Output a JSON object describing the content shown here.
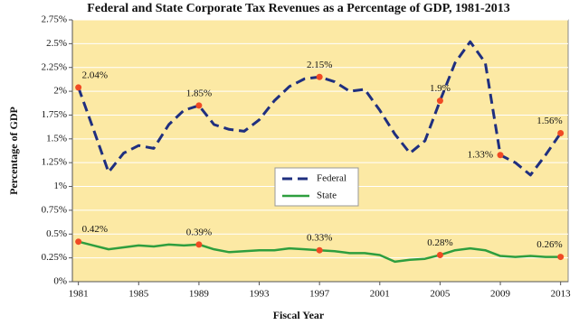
{
  "chart_data": {
    "type": "line",
    "title": "Federal and State Corporate Tax Revenues as a Percentage of GDP, 1981-2013",
    "x_label": "Fiscal Year",
    "y_label": "Percentage of GDP",
    "x": [
      1981,
      1982,
      1983,
      1984,
      1985,
      1986,
      1987,
      1988,
      1989,
      1990,
      1991,
      1992,
      1993,
      1994,
      1995,
      1996,
      1997,
      1998,
      1999,
      2000,
      2001,
      2002,
      2003,
      2004,
      2005,
      2006,
      2007,
      2008,
      2009,
      2010,
      2011,
      2012,
      2013
    ],
    "series": [
      {
        "name": "Federal",
        "color": "#1f2f7f",
        "style": "dashed",
        "values": [
          2.04,
          1.6,
          1.15,
          1.35,
          1.43,
          1.4,
          1.65,
          1.8,
          1.85,
          1.65,
          1.6,
          1.58,
          1.7,
          1.9,
          2.05,
          2.13,
          2.15,
          2.1,
          2.0,
          2.02,
          1.8,
          1.55,
          1.35,
          1.48,
          1.9,
          2.3,
          2.52,
          2.3,
          1.33,
          1.25,
          1.12,
          1.33,
          1.56
        ],
        "value_labels": [
          "2.04%",
          null,
          null,
          null,
          null,
          null,
          null,
          null,
          "1.85%",
          null,
          null,
          null,
          null,
          null,
          null,
          null,
          "2.15%",
          null,
          null,
          null,
          null,
          null,
          null,
          null,
          "1.9%",
          null,
          null,
          null,
          "1.33%",
          null,
          null,
          null,
          "1.56%"
        ]
      },
      {
        "name": "State",
        "color": "#2e9e3e",
        "style": "solid",
        "values": [
          0.42,
          0.38,
          0.34,
          0.36,
          0.38,
          0.37,
          0.39,
          0.38,
          0.39,
          0.34,
          0.31,
          0.32,
          0.33,
          0.33,
          0.35,
          0.34,
          0.33,
          0.32,
          0.3,
          0.3,
          0.28,
          0.21,
          0.23,
          0.24,
          0.28,
          0.33,
          0.35,
          0.33,
          0.27,
          0.26,
          0.27,
          0.26,
          0.26
        ],
        "value_labels": [
          "0.42%",
          null,
          null,
          null,
          null,
          null,
          null,
          null,
          "0.39%",
          null,
          null,
          null,
          null,
          null,
          null,
          null,
          "0.33%",
          null,
          null,
          null,
          null,
          null,
          null,
          null,
          "0.28%",
          null,
          null,
          null,
          null,
          null,
          null,
          null,
          "0.26%"
        ]
      }
    ],
    "marker_color": "#f04a24",
    "xlim": [
      1980.6,
      2013.5
    ],
    "xticks": [
      1981,
      1985,
      1989,
      1993,
      1997,
      2001,
      2005,
      2009,
      2013
    ],
    "ylim": [
      0,
      2.75
    ],
    "yticks": [
      {
        "value": 0,
        "label": "0%"
      },
      {
        "value": 0.25,
        "label": "0.25%"
      },
      {
        "value": 0.5,
        "label": "0.5%"
      },
      {
        "value": 0.75,
        "label": "0.75%"
      },
      {
        "value": 1,
        "label": "1%"
      },
      {
        "value": 1.25,
        "label": "1.25%"
      },
      {
        "value": 1.5,
        "label": "1.5%"
      },
      {
        "value": 1.75,
        "label": "1.75%"
      },
      {
        "value": 2,
        "label": "2%"
      },
      {
        "value": 2.25,
        "label": "2.25%"
      },
      {
        "value": 2.5,
        "label": "2.5%"
      },
      {
        "value": 2.75,
        "label": "2.75%"
      }
    ],
    "grid": true,
    "background": "#fce9a4",
    "legend": "center"
  }
}
